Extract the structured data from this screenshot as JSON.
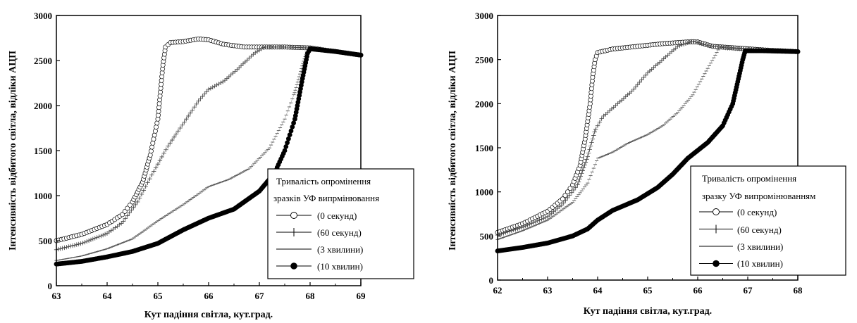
{
  "chart_data": [
    {
      "type": "scatter",
      "xlabel": "Кут падіння світла, кут.град.",
      "ylabel": "Інтенсивність відбитого світла, відліки АЦП",
      "xlim": [
        63,
        69
      ],
      "ylim": [
        0,
        3000
      ],
      "xticks": [
        63,
        64,
        65,
        66,
        67,
        68,
        69
      ],
      "yticks": [
        0,
        500,
        1000,
        1500,
        2000,
        2500,
        3000
      ],
      "grid": false,
      "legend": {
        "title": [
          "Тривалість опромінення",
          "зразків УФ випрмінювання"
        ],
        "placement": "bottom-right",
        "entries": [
          "(0 секунд)",
          "(60 секунд)",
          "(3 хвилини)",
          "(10 хвилин)"
        ]
      },
      "series": [
        {
          "name": "(0 секунд)",
          "marker": "open-circle",
          "step": 0.05,
          "points": [
            [
              63,
              500
            ],
            [
              63.5,
              570
            ],
            [
              64,
              680
            ],
            [
              64.3,
              790
            ],
            [
              64.5,
              930
            ],
            [
              64.7,
              1150
            ],
            [
              64.85,
              1450
            ],
            [
              65,
              1850
            ],
            [
              65.05,
              2150
            ],
            [
              65.1,
              2450
            ],
            [
              65.15,
              2650
            ],
            [
              65.25,
              2700
            ],
            [
              65.5,
              2710
            ],
            [
              65.8,
              2740
            ],
            [
              66,
              2730
            ],
            [
              66.3,
              2680
            ],
            [
              66.7,
              2650
            ],
            [
              67.5,
              2650
            ],
            [
              68,
              2640
            ],
            [
              68.5,
              2600
            ],
            [
              69,
              2560
            ]
          ]
        },
        {
          "name": "(60 секунд)",
          "marker": "plus",
          "step": 0.04,
          "points": [
            [
              63,
              400
            ],
            [
              63.5,
              470
            ],
            [
              64,
              580
            ],
            [
              64.3,
              700
            ],
            [
              64.6,
              930
            ],
            [
              64.9,
              1250
            ],
            [
              65.2,
              1550
            ],
            [
              65.5,
              1800
            ],
            [
              65.8,
              2050
            ],
            [
              66,
              2180
            ],
            [
              66.3,
              2270
            ],
            [
              66.6,
              2420
            ],
            [
              66.9,
              2580
            ],
            [
              67.1,
              2650
            ],
            [
              67.5,
              2650
            ],
            [
              68,
              2640
            ],
            [
              68.5,
              2600
            ],
            [
              69,
              2560
            ]
          ]
        },
        {
          "name": "(3 хвилини)",
          "marker": "dash",
          "step": 0.03,
          "points": [
            [
              63,
              280
            ],
            [
              63.5,
              330
            ],
            [
              64,
              410
            ],
            [
              64.5,
              520
            ],
            [
              65,
              720
            ],
            [
              65.5,
              900
            ],
            [
              66,
              1100
            ],
            [
              66.4,
              1180
            ],
            [
              66.8,
              1300
            ],
            [
              67.2,
              1530
            ],
            [
              67.5,
              1850
            ],
            [
              67.7,
              2150
            ],
            [
              67.85,
              2450
            ],
            [
              67.95,
              2620
            ],
            [
              68,
              2640
            ],
            [
              68.5,
              2600
            ],
            [
              69,
              2560
            ]
          ]
        },
        {
          "name": "(10 хвилин)",
          "marker": "filled-circle",
          "step": 0.025,
          "points": [
            [
              63,
              240
            ],
            [
              63.5,
              270
            ],
            [
              64,
              320
            ],
            [
              64.5,
              380
            ],
            [
              65,
              470
            ],
            [
              65.5,
              620
            ],
            [
              66,
              750
            ],
            [
              66.5,
              850
            ],
            [
              67,
              1050
            ],
            [
              67.3,
              1250
            ],
            [
              67.5,
              1500
            ],
            [
              67.7,
              1850
            ],
            [
              67.85,
              2300
            ],
            [
              67.95,
              2580
            ],
            [
              68,
              2630
            ],
            [
              68.5,
              2600
            ],
            [
              69,
              2560
            ]
          ]
        }
      ]
    },
    {
      "type": "scatter",
      "xlabel": "Кут падіння світла, кут.град.",
      "ylabel": "Інтенсивність відбитого світла, відліки АЦП",
      "xlim": [
        62,
        68
      ],
      "ylim": [
        0,
        3000
      ],
      "xticks": [
        62,
        63,
        64,
        65,
        66,
        67,
        68
      ],
      "yticks": [
        0,
        500,
        1000,
        1500,
        2000,
        2500,
        3000
      ],
      "grid": false,
      "legend": {
        "title": [
          "Тривалість опромінення",
          "зразку УФ випромінюванням"
        ],
        "placement": "bottom-right",
        "entries": [
          "(0 секунд)",
          "(60 секунд)",
          "(3 хвилини)",
          "(10 хвилин)"
        ]
      },
      "series": [
        {
          "name": "(0 секунд)",
          "marker": "open-circle",
          "step": 0.05,
          "points": [
            [
              62,
              540
            ],
            [
              62.5,
              640
            ],
            [
              63,
              780
            ],
            [
              63.3,
              920
            ],
            [
              63.5,
              1080
            ],
            [
              63.65,
              1300
            ],
            [
              63.75,
              1600
            ],
            [
              63.85,
              2000
            ],
            [
              63.9,
              2300
            ],
            [
              63.95,
              2500
            ],
            [
              64,
              2580
            ],
            [
              64.3,
              2620
            ],
            [
              64.8,
              2650
            ],
            [
              65.3,
              2680
            ],
            [
              65.8,
              2700
            ],
            [
              66,
              2700
            ],
            [
              66.3,
              2650
            ],
            [
              66.8,
              2630
            ],
            [
              67.3,
              2610
            ],
            [
              68,
              2590
            ]
          ]
        },
        {
          "name": "(60 секунд)",
          "marker": "plus",
          "step": 0.04,
          "points": [
            [
              62,
              510
            ],
            [
              62.5,
              600
            ],
            [
              63,
              720
            ],
            [
              63.3,
              860
            ],
            [
              63.6,
              1080
            ],
            [
              63.8,
              1400
            ],
            [
              63.95,
              1700
            ],
            [
              64.1,
              1850
            ],
            [
              64.4,
              2000
            ],
            [
              64.7,
              2150
            ],
            [
              65,
              2350
            ],
            [
              65.3,
              2500
            ],
            [
              65.6,
              2650
            ],
            [
              65.9,
              2710
            ],
            [
              66.2,
              2660
            ],
            [
              66.6,
              2630
            ],
            [
              67.2,
              2610
            ],
            [
              68,
              2590
            ]
          ]
        },
        {
          "name": "(3 хвилини)",
          "marker": "dash",
          "step": 0.03,
          "points": [
            [
              62,
              460
            ],
            [
              62.5,
              560
            ],
            [
              63,
              680
            ],
            [
              63.5,
              880
            ],
            [
              63.8,
              1100
            ],
            [
              64,
              1380
            ],
            [
              64.3,
              1450
            ],
            [
              64.6,
              1550
            ],
            [
              65,
              1650
            ],
            [
              65.3,
              1750
            ],
            [
              65.6,
              1900
            ],
            [
              65.9,
              2100
            ],
            [
              66.1,
              2300
            ],
            [
              66.3,
              2500
            ],
            [
              66.45,
              2650
            ],
            [
              66.8,
              2630
            ],
            [
              67.3,
              2610
            ],
            [
              68,
              2590
            ]
          ]
        },
        {
          "name": "(10 хвилин)",
          "marker": "filled-circle",
          "step": 0.025,
          "points": [
            [
              62,
              330
            ],
            [
              62.5,
              370
            ],
            [
              63,
              420
            ],
            [
              63.5,
              500
            ],
            [
              63.8,
              580
            ],
            [
              64,
              680
            ],
            [
              64.3,
              790
            ],
            [
              64.8,
              910
            ],
            [
              65.2,
              1050
            ],
            [
              65.5,
              1200
            ],
            [
              65.8,
              1380
            ],
            [
              66.2,
              1560
            ],
            [
              66.5,
              1750
            ],
            [
              66.7,
              2000
            ],
            [
              66.8,
              2250
            ],
            [
              66.9,
              2500
            ],
            [
              66.95,
              2600
            ],
            [
              67.3,
              2600
            ],
            [
              68,
              2590
            ]
          ]
        }
      ]
    }
  ]
}
